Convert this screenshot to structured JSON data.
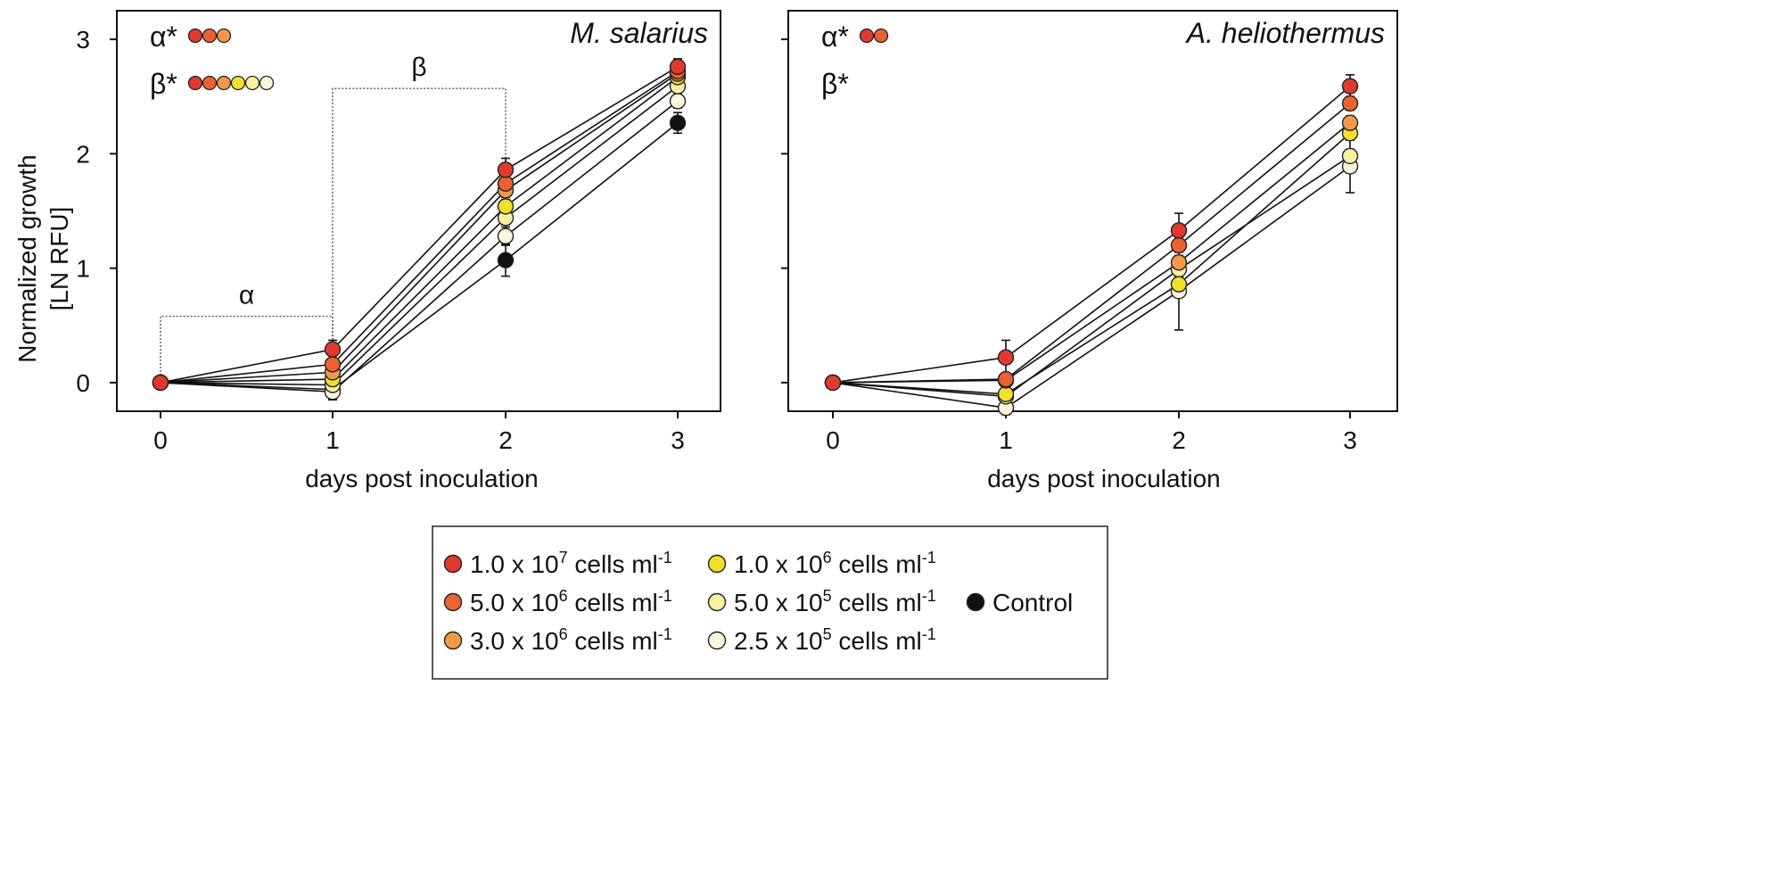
{
  "chart_data": {
    "type": "line",
    "ylabel": [
      "Normalized growth",
      "[LN RFU]"
    ],
    "xlabel": "days post inoculation",
    "xlim": [
      -0.25,
      3.25
    ],
    "ylim": [
      -0.25,
      3.25
    ],
    "xticks": [
      "0",
      "1",
      "2",
      "3"
    ],
    "yticks": [
      "0",
      "1",
      "2",
      "3"
    ],
    "series_styles": [
      {
        "name": "1.0 x 10^7 cells ml^-1",
        "text": "1.0 x 10",
        "exp": "7",
        "color": "#e03a2e"
      },
      {
        "name": "5.0 x 10^6 cells ml^-1",
        "text": "5.0 x 10",
        "exp": "6",
        "color": "#ea6232"
      },
      {
        "name": "3.0 x 10^6 cells ml^-1",
        "text": "3.0 x 10",
        "exp": "6",
        "color": "#f29a4a"
      },
      {
        "name": "1.0 x 10^6 cells ml^-1",
        "text": "1.0 x 10",
        "exp": "6",
        "color": "#f0e02c"
      },
      {
        "name": "5.0 x 10^5 cells ml^-1",
        "text": "5.0 x 10",
        "exp": "5",
        "color": "#f6f0a0"
      },
      {
        "name": "2.5 x 10^5 cells ml^-1",
        "text": "2.5 x 10",
        "exp": "5",
        "color": "#f9f6dd"
      },
      {
        "name": "Control",
        "text": "Control",
        "exp": "",
        "color": "#111111"
      }
    ],
    "legend_suffix": " cells ml",
    "legend_suffix_exp": "-1",
    "panels": [
      {
        "title": "M. salarius",
        "x": [
          0,
          1,
          2,
          3
        ],
        "series": [
          {
            "name": "1.0 x 10^7 cells ml^-1",
            "values": [
              0,
              0.29,
              1.86,
              2.76
            ],
            "err": [
              0,
              0.08,
              0.1,
              0.07
            ]
          },
          {
            "name": "5.0 x 10^6 cells ml^-1",
            "values": [
              0,
              0.16,
              1.74,
              2.72
            ],
            "err": [
              0,
              0.05,
              0.06,
              0.05
            ]
          },
          {
            "name": "3.0 x 10^6 cells ml^-1",
            "values": [
              0,
              0.09,
              1.68,
              2.7
            ],
            "err": [
              0,
              0.05,
              0.06,
              0.05
            ]
          },
          {
            "name": "1.0 x 10^6 cells ml^-1",
            "values": [
              0,
              0.03,
              1.54,
              2.67
            ],
            "err": [
              0,
              0.05,
              0.06,
              0.05
            ]
          },
          {
            "name": "5.0 x 10^5 cells ml^-1",
            "values": [
              0,
              -0.02,
              1.44,
              2.59
            ],
            "err": [
              0,
              0.05,
              0.06,
              0.05
            ]
          },
          {
            "name": "2.5 x 10^5 cells ml^-1",
            "values": [
              0,
              -0.08,
              1.28,
              2.46
            ],
            "err": [
              0,
              0.07,
              0.08,
              0.06
            ]
          },
          {
            "name": "Control",
            "values": [
              0,
              -0.06,
              1.07,
              2.27
            ],
            "err": [
              0,
              0.08,
              0.14,
              0.09
            ]
          }
        ],
        "sig": [
          {
            "label": "α*",
            "colors": [
              "#e03a2e",
              "#ea6232",
              "#f29a4a"
            ]
          },
          {
            "label": "β*",
            "colors": [
              "#e03a2e",
              "#ea6232",
              "#f29a4a",
              "#f0e02c",
              "#f6f0a0",
              "#f9f6dd"
            ]
          }
        ],
        "brackets": [
          {
            "label": "α",
            "x0": 0,
            "x1": 1,
            "y": 0.58
          },
          {
            "label": "β",
            "x0": 1,
            "x1": 2,
            "y": 2.57
          }
        ]
      },
      {
        "title": "A. heliothermus",
        "x": [
          0,
          1,
          2,
          3
        ],
        "series": [
          {
            "name": "1.0 x 10^7 cells ml^-1",
            "values": [
              0,
              0.22,
              1.33,
              2.59
            ],
            "err": [
              0,
              0.15,
              0.15,
              0.1
            ]
          },
          {
            "name": "5.0 x 10^6 cells ml^-1",
            "values": [
              0,
              0.03,
              1.2,
              2.44
            ],
            "err": [
              0,
              0.05,
              0.06,
              0.06
            ]
          },
          {
            "name": "3.0 x 10^6 cells ml^-1",
            "values": [
              0,
              0.02,
              1.05,
              2.27
            ],
            "err": [
              0,
              0.05,
              0.06,
              0.06
            ]
          },
          {
            "name": "1.0 x 10^6 cells ml^-1",
            "values": [
              0,
              -0.1,
              0.86,
              2.18
            ],
            "err": [
              0,
              0.05,
              0.06,
              0.06
            ]
          },
          {
            "name": "5.0 x 10^5 cells ml^-1",
            "values": [
              0,
              -0.12,
              0.99,
              1.98
            ],
            "err": [
              0,
              0.05,
              0.06,
              0.06
            ]
          },
          {
            "name": "2.5 x 10^5 cells ml^-1",
            "values": [
              0,
              -0.22,
              0.8,
              1.89
            ],
            "err": [
              0,
              0.06,
              0.34,
              0.23
            ]
          }
        ],
        "sig": [
          {
            "label": "α*",
            "colors": [
              "#e03a2e",
              "#ea6232"
            ]
          },
          {
            "label": "β*",
            "colors": []
          }
        ],
        "brackets": []
      }
    ]
  }
}
